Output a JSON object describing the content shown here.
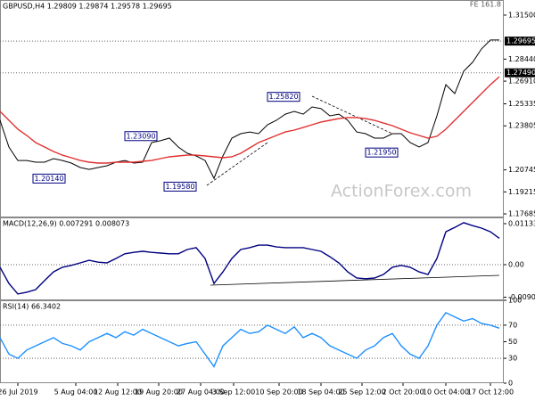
{
  "chart_data": [
    {
      "type": "line",
      "title": "GBPUSD,H4  1.29809 1.29874 1.29578 1.29695",
      "annotation": "FE 161.8",
      "watermark": "ActionForex.com",
      "xlim": [
        0,
        56.5
      ],
      "ylim": [
        1.1744,
        1.3255
      ],
      "yticks": [
        {
          "value": 1.315,
          "label": "1.31500"
        },
        {
          "value": 1.2844,
          "label": "1.28440"
        },
        {
          "value": 1.2691,
          "label": "1.26910"
        },
        {
          "value": 1.25335,
          "label": "1.25335"
        },
        {
          "value": 1.23805,
          "label": "1.23805"
        },
        {
          "value": 1.20745,
          "label": "1.20745"
        },
        {
          "value": 1.19215,
          "label": "1.19215"
        },
        {
          "value": 1.17685,
          "label": "1.17685"
        }
      ],
      "levels": [
        {
          "value": 1.29695,
          "label": "1.29695"
        },
        {
          "value": 1.2749,
          "label": "1.27490"
        }
      ],
      "points": [
        {
          "value": 1.2014,
          "label": "1.20140"
        },
        {
          "value": 1.2309,
          "label": "1.23090"
        },
        {
          "value": 1.1958,
          "label": "1.19580"
        },
        {
          "value": 1.2582,
          "label": "1.25820"
        },
        {
          "value": 1.2195,
          "label": "1.21950"
        }
      ],
      "series": [
        {
          "color": "#000000",
          "values": [
            1.2419,
            1.2233,
            1.214,
            1.214,
            1.2128,
            1.2128,
            1.2153,
            1.214,
            1.2122,
            1.2091,
            1.2078,
            1.2091,
            1.2103,
            1.2128,
            1.214,
            1.2122,
            1.2128,
            1.2264,
            1.2277,
            1.2295,
            1.2233,
            1.219,
            1.2171,
            1.214,
            1.2016,
            1.2171,
            1.2295,
            1.2326,
            1.2338,
            1.2326,
            1.2388,
            1.2419,
            1.2462,
            1.2481,
            1.2462,
            1.2512,
            1.25,
            1.245,
            1.2462,
            1.2419,
            1.2338,
            1.2326,
            1.2295,
            1.2295,
            1.2326,
            1.2326,
            1.2264,
            1.2233,
            1.2264,
            1.245,
            1.2667,
            1.2605,
            1.276,
            1.2822,
            1.2915,
            1.2977,
            1.2977
          ]
        },
        {
          "color": "#e03030",
          "values": [
            1.2481,
            1.2419,
            1.2357,
            1.2314,
            1.2264,
            1.2233,
            1.2202,
            1.2177,
            1.2159,
            1.214,
            1.2128,
            1.2122,
            1.2122,
            1.2128,
            1.2128,
            1.2128,
            1.2134,
            1.214,
            1.2153,
            1.2165,
            1.2171,
            1.2177,
            1.2177,
            1.2171,
            1.2165,
            1.2159,
            1.2165,
            1.219,
            1.2227,
            1.2264,
            1.2289,
            1.2314,
            1.2338,
            1.2351,
            1.2369,
            1.2388,
            1.2407,
            1.2419,
            1.2431,
            1.2438,
            1.2438,
            1.2431,
            1.2419,
            1.24,
            1.2382,
            1.2357,
            1.2332,
            1.2314,
            1.2295,
            1.2308,
            1.2357,
            1.2419,
            1.2481,
            1.2543,
            1.2605,
            1.2667,
            1.2722
          ]
        }
      ]
    },
    {
      "type": "line",
      "title": "MACD(12,26,9) 0.007291 0.008073",
      "xlim": [
        0,
        56.5
      ],
      "ylim": [
        -0.00985,
        0.01306
      ],
      "yticks": [
        0.011332,
        {
          "value": 0,
          "label": "0.00"
        },
        -0.009006
      ],
      "levels": [
        0
      ],
      "series": [
        {
          "color": "#000080",
          "values": [
            -0.0007,
            -0.0052,
            -0.0081,
            -0.0076,
            -0.0069,
            -0.0044,
            -0.002,
            -0.0007,
            -0.0002,
            0.0005,
            0.0012,
            0.0007,
            0.0005,
            0.0017,
            0.003,
            0.0034,
            0.0037,
            0.0034,
            0.0032,
            0.003,
            0.003,
            0.0042,
            0.0047,
            0.0017,
            -0.0052,
            -0.002,
            0.0017,
            0.0042,
            0.0047,
            0.0054,
            0.0054,
            0.0049,
            0.0047,
            0.0047,
            0.0047,
            0.0042,
            0.0037,
            0.0022,
            0.0005,
            -0.002,
            -0.0037,
            -0.0039,
            -0.0037,
            -0.0027,
            -0.0007,
            -0.0002,
            -0.0007,
            -0.002,
            -0.0027,
            0.0017,
            0.0091,
            0.0103,
            0.0116,
            0.0108,
            0.0101,
            0.0091,
            0.0073
          ]
        }
      ]
    },
    {
      "type": "line",
      "title": "RSI(14) 66.3402",
      "xlim": [
        0,
        56.5
      ],
      "ylim": [
        0,
        100
      ],
      "yticks": [
        100,
        70,
        50,
        30,
        0
      ],
      "levels": [
        70,
        30
      ],
      "xticks": [
        {
          "value": 2,
          "label": "26 Jul 2019"
        },
        {
          "value": 8.5,
          "label": "5 Aug 04:00"
        },
        {
          "value": 13.2,
          "label": "12 Aug 12:00"
        },
        {
          "value": 17.8,
          "label": "19 Aug 20:00"
        },
        {
          "value": 22.5,
          "label": "27 Aug 04:00"
        },
        {
          "value": 26.2,
          "label": "3 Sep 12:00"
        },
        {
          "value": 31.3,
          "label": "10 Sep 20:00"
        },
        {
          "value": 36,
          "label": "18 Sep 04:00"
        },
        {
          "value": 40.6,
          "label": "25 Sep 12:00"
        },
        {
          "value": 45.2,
          "label": "2 Oct 20:00"
        },
        {
          "value": 50,
          "label": "10 Oct 04:00"
        },
        {
          "value": 55,
          "label": "17 Oct 12:00"
        }
      ],
      "series": [
        {
          "color": "#1e90ff",
          "values": [
            55,
            35,
            30,
            40,
            45,
            50,
            55,
            48,
            45,
            40,
            50,
            55,
            60,
            55,
            62,
            58,
            65,
            60,
            55,
            50,
            45,
            48,
            50,
            35,
            20,
            45,
            55,
            65,
            60,
            62,
            70,
            65,
            60,
            68,
            55,
            60,
            55,
            45,
            40,
            35,
            30,
            40,
            45,
            55,
            60,
            45,
            35,
            30,
            45,
            70,
            85,
            80,
            75,
            78,
            72,
            70,
            66.3402
          ]
        }
      ]
    }
  ]
}
